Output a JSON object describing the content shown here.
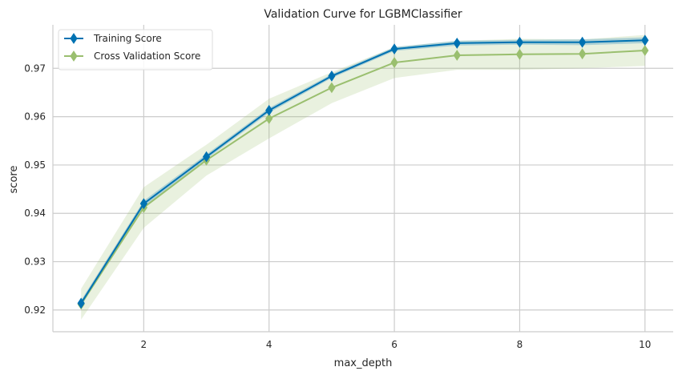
{
  "chart_data": {
    "type": "line",
    "title": "Validation Curve for LGBMClassifier",
    "xlabel": "max_depth",
    "ylabel": "score",
    "x": [
      1,
      2,
      3,
      4,
      5,
      6,
      7,
      8,
      9,
      10
    ],
    "xticks": [
      2,
      4,
      6,
      8,
      10
    ],
    "yticks": [
      0.92,
      0.93,
      0.94,
      0.95,
      0.96,
      0.97
    ],
    "xlim": [
      0.55,
      10.45
    ],
    "ylim": [
      0.9155,
      0.979
    ],
    "grid": true,
    "legend_position": "top-left",
    "series": [
      {
        "name": "Training Score",
        "color": "#0072B2",
        "marker": "diamond",
        "values": [
          0.9214,
          0.942,
          0.9517,
          0.9613,
          0.9684,
          0.974,
          0.9752,
          0.9754,
          0.9754,
          0.9758
        ],
        "band_lower": [
          0.9208,
          0.9414,
          0.9512,
          0.9608,
          0.968,
          0.9736,
          0.9747,
          0.9749,
          0.9748,
          0.9752
        ],
        "band_upper": [
          0.922,
          0.9426,
          0.9522,
          0.9618,
          0.9688,
          0.9744,
          0.9757,
          0.9759,
          0.976,
          0.9764
        ]
      },
      {
        "name": "Cross Validation Score",
        "color": "#9ABF6F",
        "marker": "diamond",
        "values": [
          0.9212,
          0.9412,
          0.951,
          0.9596,
          0.966,
          0.9712,
          0.9727,
          0.9729,
          0.973,
          0.9737
        ],
        "band_lower": [
          0.918,
          0.937,
          0.9478,
          0.9555,
          0.9628,
          0.968,
          0.9697,
          0.9697,
          0.97,
          0.9705
        ],
        "band_upper": [
          0.9244,
          0.9454,
          0.9542,
          0.9637,
          0.9692,
          0.9744,
          0.9757,
          0.9761,
          0.976,
          0.9769
        ]
      }
    ]
  }
}
